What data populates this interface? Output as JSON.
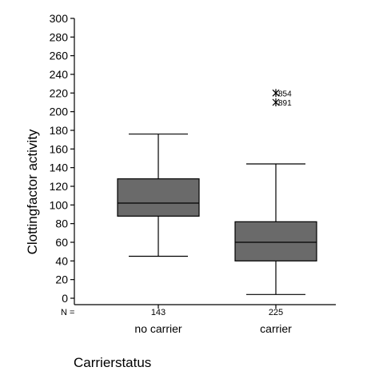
{
  "chart_data": {
    "type": "boxplot",
    "ylabel": "Clottingfactor activity",
    "xlabel": "Carrierstatus",
    "n_label": "N =",
    "ylim": [
      0,
      300
    ],
    "yticks": [
      0,
      20,
      40,
      60,
      80,
      100,
      120,
      140,
      160,
      180,
      200,
      220,
      240,
      260,
      280,
      300
    ],
    "groups": [
      {
        "label": "no carrier",
        "n": "143",
        "min": 45,
        "q1": 88,
        "median": 102,
        "q3": 128,
        "max": 176,
        "outliers": []
      },
      {
        "label": "carrier",
        "n": "225",
        "min": 4,
        "q1": 40,
        "median": 60,
        "q3": 82,
        "max": 144,
        "outliers": [
          {
            "value": 220,
            "label": "854"
          },
          {
            "value": 210,
            "label": "891"
          }
        ]
      }
    ],
    "box_color": "#6a6a6a"
  }
}
